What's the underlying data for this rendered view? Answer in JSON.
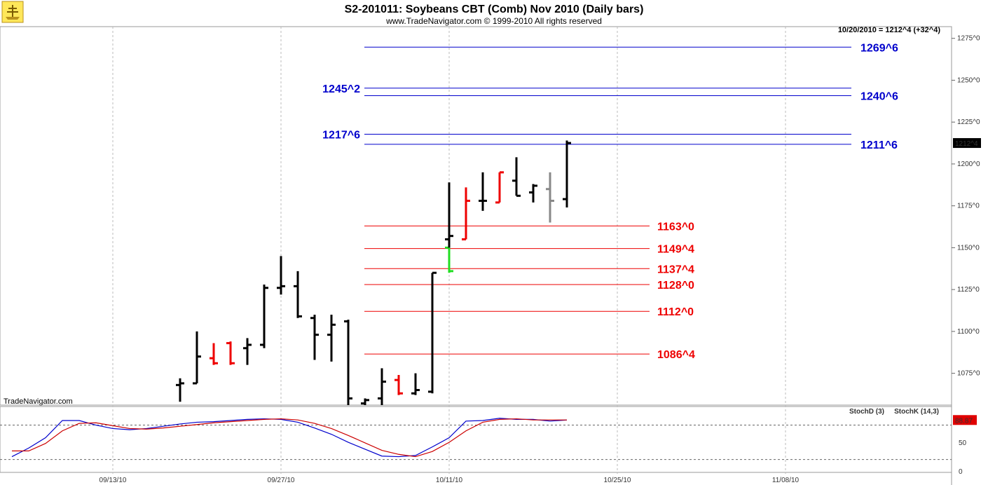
{
  "header": {
    "title": "S2-201011:  Soybeans CBT (Comb) Nov 2010  (Daily bars)",
    "copyright": "www.TradeNavigator.com © 1999-2010 All rights reserved",
    "last_quote": "10/20/2010 = 1212^4 (+32^4)",
    "brand": "TradeNavigator.com"
  },
  "colors": {
    "up_bar": "#000000",
    "down_bar": "#ee0000",
    "neutral_bar": "#888888",
    "green_bar": "#22dd22",
    "resistance": "#0000cc",
    "support": "#ee0000",
    "stochk": "#0000cc",
    "stochd": "#cc0000"
  },
  "chart_data": [
    {
      "type": "bar",
      "title": "S2-201011:  Soybeans CBT (Comb) Nov 2010  (Daily bars)",
      "price_axis": {
        "ylim": [
          1056,
          1282
        ],
        "ticks": [
          1075,
          1100,
          1125,
          1150,
          1175,
          1200,
          1225,
          1250,
          1275
        ],
        "tick_labels": [
          "1075^0",
          "1100^0",
          "1125^0",
          "1150^0",
          "1175^0",
          "1200^0",
          "1225^0",
          "1250^0",
          "1275^0"
        ],
        "last_price_label": "1212^4",
        "last_price": 1212.5
      },
      "x_axis": {
        "labels": [
          "09/13/10",
          "09/27/10",
          "10/11/10",
          "10/25/10",
          "11/08/10"
        ],
        "label_day_index": [
          6,
          16,
          26,
          36,
          46
        ]
      },
      "ohlc": [
        {
          "day": 10,
          "o": 1068,
          "h": 1072,
          "l": 1058,
          "c": 1069,
          "color": "up"
        },
        {
          "day": 11,
          "o": 1069,
          "h": 1100,
          "l": 1069,
          "c": 1085,
          "color": "up"
        },
        {
          "day": 12,
          "o": 1084,
          "h": 1093,
          "l": 1080,
          "c": 1081,
          "color": "down"
        },
        {
          "day": 13,
          "o": 1093,
          "h": 1094,
          "l": 1080,
          "c": 1081,
          "color": "down"
        },
        {
          "day": 14,
          "o": 1090,
          "h": 1096,
          "l": 1080,
          "c": 1092,
          "color": "up"
        },
        {
          "day": 15,
          "o": 1092,
          "h": 1128,
          "l": 1090,
          "c": 1126,
          "color": "up"
        },
        {
          "day": 16,
          "o": 1126,
          "h": 1145,
          "l": 1122,
          "c": 1127,
          "color": "up"
        },
        {
          "day": 17,
          "o": 1127,
          "h": 1136,
          "l": 1108,
          "c": 1109,
          "color": "up"
        },
        {
          "day": 18,
          "o": 1108,
          "h": 1110,
          "l": 1083,
          "c": 1098,
          "color": "up"
        },
        {
          "day": 19,
          "o": 1098,
          "h": 1110,
          "l": 1082,
          "c": 1104,
          "color": "up"
        },
        {
          "day": 20,
          "o": 1106,
          "h": 1107,
          "l": 1056,
          "c": 1060,
          "color": "up"
        },
        {
          "day": 21,
          "o": 1057,
          "h": 1060,
          "l": 1056,
          "c": 1059,
          "color": "up"
        },
        {
          "day": 22,
          "o": 1060,
          "h": 1078,
          "l": 1056,
          "c": 1070,
          "color": "up"
        },
        {
          "day": 23,
          "o": 1071,
          "h": 1074,
          "l": 1062,
          "c": 1063,
          "color": "down"
        },
        {
          "day": 24,
          "o": 1063,
          "h": 1075,
          "l": 1062,
          "c": 1065,
          "color": "up"
        },
        {
          "day": 25,
          "o": 1064,
          "h": 1135,
          "l": 1063,
          "c": 1135,
          "color": "up"
        },
        {
          "day": 26,
          "o": 1150,
          "h": 1150,
          "l": 1135,
          "c": 1136,
          "color": "green"
        },
        {
          "day": 26,
          "o": 1155,
          "h": 1189,
          "l": 1150,
          "c": 1157,
          "color": "up"
        },
        {
          "day": 27,
          "o": 1155,
          "h": 1186,
          "l": 1155,
          "c": 1178,
          "color": "down"
        },
        {
          "day": 28,
          "o": 1178,
          "h": 1195,
          "l": 1172,
          "c": 1178,
          "color": "up"
        },
        {
          "day": 29,
          "o": 1177,
          "h": 1195,
          "l": 1177,
          "c": 1195,
          "color": "down"
        },
        {
          "day": 30,
          "o": 1190,
          "h": 1204,
          "l": 1181,
          "c": 1181,
          "color": "up"
        },
        {
          "day": 31,
          "o": 1183,
          "h": 1188,
          "l": 1177,
          "c": 1187,
          "color": "up"
        },
        {
          "day": 32,
          "o": 1185,
          "h": 1195,
          "l": 1165,
          "c": 1178,
          "color": "neutral"
        },
        {
          "day": 33,
          "o": 1179,
          "h": 1214,
          "l": 1174,
          "c": 1212.5,
          "color": "up"
        }
      ],
      "levels": [
        {
          "value": 1269.75,
          "label": "1269^6",
          "kind": "resistance",
          "label_side": "right"
        },
        {
          "value": 1245.25,
          "label": "1245^2",
          "kind": "resistance",
          "label_side": "left"
        },
        {
          "value": 1240.75,
          "label": "1240^6",
          "kind": "resistance",
          "label_side": "right"
        },
        {
          "value": 1217.75,
          "label": "1217^6",
          "kind": "resistance",
          "label_side": "left"
        },
        {
          "value": 1211.75,
          "label": "1211^6",
          "kind": "resistance",
          "label_side": "right"
        },
        {
          "value": 1163.0,
          "label": "1163^0",
          "kind": "support",
          "label_side": "right"
        },
        {
          "value": 1149.5,
          "label": "1149^4",
          "kind": "support",
          "label_side": "right"
        },
        {
          "value": 1137.5,
          "label": "1137^4",
          "kind": "support",
          "label_side": "right"
        },
        {
          "value": 1128.0,
          "label": "1128^0",
          "kind": "support",
          "label_side": "right"
        },
        {
          "value": 1112.0,
          "label": "1112^0",
          "kind": "support",
          "label_side": "right"
        },
        {
          "value": 1086.5,
          "label": "1086^4",
          "kind": "support",
          "label_side": "right"
        }
      ]
    },
    {
      "type": "line",
      "title": "",
      "legend": [
        "StochD (3)",
        "StochK (14,3)"
      ],
      "ylim": [
        0,
        110
      ],
      "ticks": [
        0,
        50
      ],
      "tick_labels": [
        "0",
        "50"
      ],
      "reference_lines": [
        80,
        20
      ],
      "last_value_label": "88.87",
      "series": [
        {
          "name": "StochK (14,3)",
          "x": [
            0,
            1,
            2,
            3,
            4,
            5,
            6,
            7,
            8,
            9,
            10,
            11,
            12,
            13,
            14,
            15,
            16,
            17,
            18,
            19,
            20,
            21,
            22,
            23,
            24,
            25,
            26,
            27,
            28,
            29,
            30,
            31,
            32,
            33
          ],
          "values": [
            25,
            40,
            58,
            88,
            88,
            80,
            74,
            72,
            74,
            78,
            82,
            85,
            86,
            88,
            90,
            91,
            90,
            85,
            75,
            64,
            50,
            38,
            26,
            25,
            27,
            42,
            58,
            87,
            88,
            92,
            90,
            90,
            87,
            88.87
          ]
        },
        {
          "name": "StochD (3)",
          "x": [
            0,
            1,
            2,
            3,
            4,
            5,
            6,
            7,
            8,
            9,
            10,
            11,
            12,
            13,
            14,
            15,
            16,
            17,
            18,
            19,
            20,
            21,
            22,
            23,
            24,
            25,
            26,
            27,
            28,
            29,
            30,
            31,
            32,
            33
          ],
          "values": [
            35,
            35,
            48,
            70,
            83,
            84,
            79,
            74,
            73,
            75,
            78,
            81,
            84,
            86,
            88,
            90,
            91,
            89,
            83,
            74,
            62,
            49,
            36,
            29,
            25,
            34,
            50,
            70,
            85,
            90,
            91,
            89,
            89,
            89
          ]
        }
      ]
    }
  ]
}
